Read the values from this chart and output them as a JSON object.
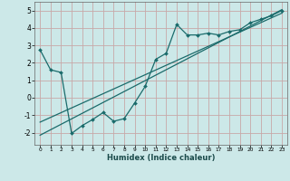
{
  "title": "",
  "xlabel": "Humidex (Indice chaleur)",
  "xlim": [
    -0.5,
    23.5
  ],
  "ylim": [
    -2.7,
    5.5
  ],
  "xticks": [
    0,
    1,
    2,
    3,
    4,
    5,
    6,
    7,
    8,
    9,
    10,
    11,
    12,
    13,
    14,
    15,
    16,
    17,
    18,
    19,
    20,
    21,
    22,
    23
  ],
  "yticks": [
    -2,
    -1,
    0,
    1,
    2,
    3,
    4,
    5
  ],
  "bg_color": "#cce8e8",
  "grid_color": "#c8a8a8",
  "line_color": "#1a6b6b",
  "data_line": {
    "x": [
      0,
      1,
      2,
      3,
      4,
      5,
      6,
      7,
      8,
      9,
      10,
      11,
      12,
      13,
      14,
      15,
      16,
      17,
      18,
      19,
      20,
      21,
      22,
      23
    ],
    "y": [
      2.75,
      1.6,
      1.45,
      -2.05,
      -1.6,
      -1.25,
      -0.85,
      -1.35,
      -1.2,
      -0.3,
      0.65,
      2.2,
      2.55,
      4.2,
      3.6,
      3.6,
      3.7,
      3.6,
      3.8,
      3.9,
      4.3,
      4.5,
      4.7,
      5.0
    ]
  },
  "trend_line1": {
    "x": [
      0,
      23
    ],
    "y": [
      -2.15,
      5.05
    ]
  },
  "trend_line2": {
    "x": [
      0,
      23
    ],
    "y": [
      -1.4,
      4.85
    ]
  },
  "xlabel_fontsize": 6.0,
  "tick_fontsize_x": 4.2,
  "tick_fontsize_y": 5.5
}
